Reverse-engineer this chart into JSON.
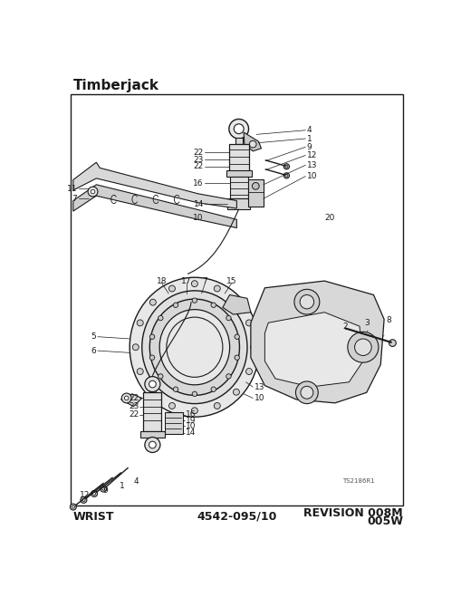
{
  "title": "Timberjack",
  "footer_left": "WRIST",
  "footer_center": "4542-095/10",
  "footer_right_line1": "REVISION 008M",
  "footer_right_line2": "005W",
  "watermark": "TS2186R1",
  "bg_color": "#ffffff",
  "border_color": "#000000",
  "title_fontsize": 11,
  "footer_fontsize": 9,
  "label_fontsize": 6.5
}
